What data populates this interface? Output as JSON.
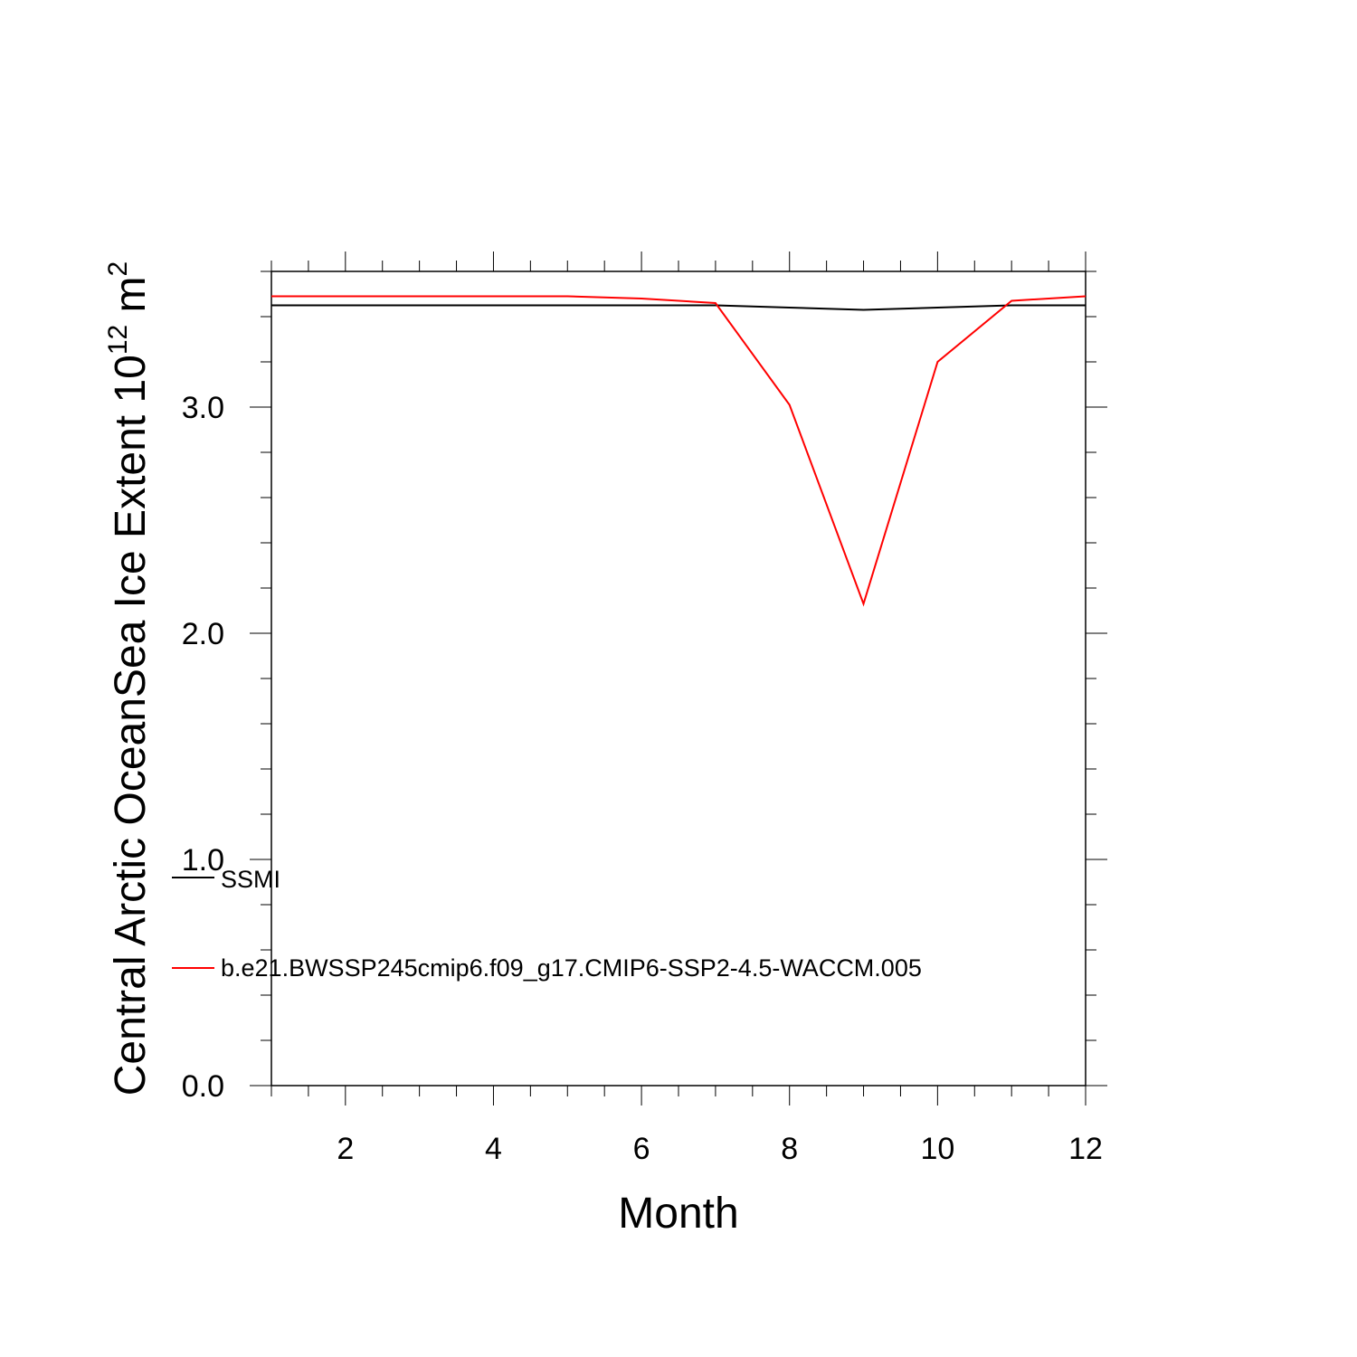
{
  "chart_data": {
    "type": "line",
    "title": "",
    "xlabel": "Month",
    "ylabel": {
      "main": "Central Arctic OceanSea Ice Extent 10",
      "exp": "12",
      "unit": " m",
      "unit_exp": "2"
    },
    "xlim": [
      1,
      12
    ],
    "ylim": [
      0,
      3.6
    ],
    "x_ticks": [
      2,
      4,
      6,
      8,
      10,
      12
    ],
    "x_tick_labels": [
      "2",
      "4",
      "6",
      "8",
      "10",
      "12"
    ],
    "y_ticks": [
      0,
      1,
      2,
      3
    ],
    "y_tick_labels": [
      "0.0",
      "1.0",
      "2.0",
      "3.0"
    ],
    "grid": false,
    "legend_placement": "bottom-left inside",
    "x": [
      1,
      2,
      3,
      4,
      5,
      6,
      7,
      8,
      9,
      10,
      11,
      12
    ],
    "series": [
      {
        "name": "SSMI",
        "color": "#000000",
        "values": [
          3.45,
          3.45,
          3.45,
          3.45,
          3.45,
          3.45,
          3.45,
          3.44,
          3.43,
          3.44,
          3.45,
          3.45
        ]
      },
      {
        "name": "b.e21.BWSSP245cmip6.f09_g17.CMIP6-SSP2-4.5-WACCM.005",
        "color": "#ff0000",
        "values": [
          3.49,
          3.49,
          3.49,
          3.49,
          3.49,
          3.48,
          3.46,
          3.01,
          2.13,
          3.2,
          3.47,
          3.49
        ]
      }
    ]
  }
}
